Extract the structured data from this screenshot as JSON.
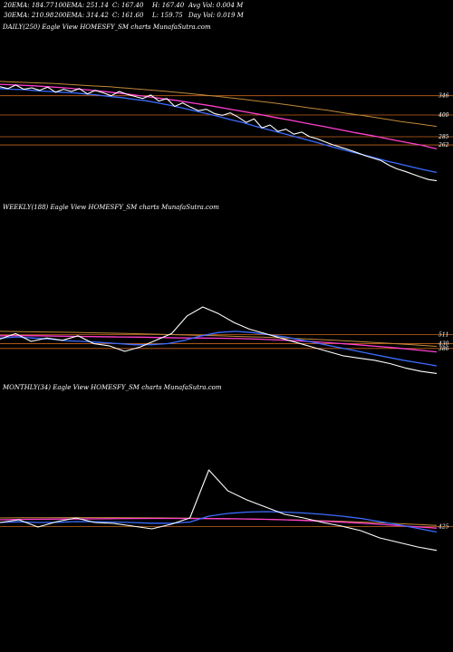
{
  "header": {
    "row1": [
      "20EMA: 184.77",
      "100EMA: 251.14",
      "C: 167.40",
      "H: 167.40",
      "Avg Vol: 0.004  M"
    ],
    "row2": [
      "30EMA: 210.98",
      "200EMA: 314.42",
      "C: 161.60",
      "L: 159.75",
      "Day Vol: 0.019 M"
    ]
  },
  "colors": {
    "price": "#ffffff",
    "ema_short": "#3b6cff",
    "ema_mid": "#ff3fd0",
    "ema_long": "#c08a3a",
    "level": "#c8641e"
  },
  "chart_data": [
    {
      "type": "line",
      "title": "DAILY(250) Eagle   View  HOMESFY_SM charts MunafaSutra.com",
      "price_labels": [
        "346",
        "400",
        "285",
        "262"
      ],
      "levels": [
        400,
        346,
        285,
        262
      ],
      "ylim": [
        120,
        450
      ],
      "series": [
        {
          "name": "price",
          "values": [
            425,
            420,
            430,
            418,
            422,
            415,
            424,
            410,
            418,
            412,
            420,
            405,
            415,
            408,
            400,
            412,
            404,
            398,
            392,
            402,
            385,
            392,
            370,
            380,
            368,
            358,
            362,
            350,
            345,
            352,
            340,
            325,
            335,
            310,
            318,
            300,
            306,
            292,
            298,
            285,
            279,
            270,
            262,
            255,
            248,
            240,
            232,
            225,
            218,
            205,
            195,
            188,
            180,
            172,
            165,
            161.6
          ]
        },
        {
          "name": "20EMA",
          "values": [
            420,
            418,
            417,
            414,
            412,
            410,
            408,
            405,
            402,
            398,
            395,
            390,
            386,
            380,
            373,
            366,
            358,
            350,
            342,
            333,
            325,
            315,
            306,
            297,
            288,
            279,
            270,
            260,
            251,
            242,
            234,
            225,
            216,
            208,
            200,
            192,
            185
          ]
        },
        {
          "name": "100EMA",
          "values": [
            432,
            430,
            428,
            425,
            422,
            418,
            414,
            409,
            404,
            398,
            392,
            386,
            379,
            372,
            364,
            356,
            348,
            339,
            331,
            322,
            314,
            305,
            296,
            288,
            279,
            270,
            262,
            251
          ]
        },
        {
          "name": "200EMA",
          "values": [
            440,
            438,
            436,
            434,
            431,
            428,
            425,
            421,
            417,
            413,
            408,
            403,
            398,
            392,
            386,
            380,
            373,
            366,
            359,
            351,
            344,
            336,
            328,
            321,
            314
          ]
        }
      ]
    },
    {
      "type": "line",
      "title": "WEEKLY(188) Eagle   View  HOMESFY_SM charts MunafaSutra.com",
      "price_labels": [
        "511",
        "430",
        "386"
      ],
      "levels": [
        511,
        430,
        386
      ],
      "ylim": [
        140,
        1200
      ],
      "series": [
        {
          "name": "price",
          "values": [
            470,
            520,
            450,
            480,
            460,
            500,
            430,
            410,
            360,
            400,
            460,
            520,
            680,
            760,
            700,
            620,
            560,
            520,
            480,
            440,
            400,
            360,
            320,
            300,
            280,
            250,
            210,
            180,
            161.6
          ]
        },
        {
          "name": "20EMA",
          "values": [
            480,
            490,
            480,
            470,
            455,
            450,
            440,
            430,
            420,
            420,
            430,
            460,
            500,
            530,
            540,
            530,
            510,
            490,
            460,
            430,
            400,
            370,
            340,
            310,
            280,
            255,
            230
          ]
        },
        {
          "name": "100EMA",
          "values": [
            500,
            502,
            500,
            497,
            495,
            492,
            490,
            488,
            485,
            482,
            480,
            478,
            475,
            470,
            463,
            455,
            445,
            433,
            420,
            405,
            390,
            372,
            355
          ]
        },
        {
          "name": "200EMA",
          "values": [
            540,
            538,
            535,
            532,
            528,
            524,
            520,
            515,
            510,
            505,
            500,
            494,
            488,
            480,
            472,
            463,
            453,
            442,
            430,
            418,
            405
          ]
        }
      ]
    },
    {
      "type": "line",
      "title": "MONTHLY(34) Eagle   View  HOMESFY_SM charts MunafaSutra.com",
      "price_labels": [
        "425"
      ],
      "levels": [
        425
      ],
      "ylim": [
        100,
        1400
      ],
      "series": [
        {
          "name": "price",
          "values": [
            470,
            500,
            420,
            480,
            520,
            470,
            460,
            430,
            400,
            450,
            520,
            1050,
            820,
            720,
            640,
            560,
            520,
            470,
            430,
            380,
            300,
            250,
            200,
            161.6
          ]
        },
        {
          "name": "20EMA",
          "values": [
            470,
            478,
            470,
            472,
            480,
            478,
            475,
            470,
            462,
            462,
            475,
            540,
            570,
            585,
            590,
            585,
            575,
            560,
            540,
            515,
            480,
            445,
            405,
            365
          ]
        },
        {
          "name": "100EMA",
          "values": [
            500,
            505,
            506,
            508,
            510,
            512,
            514,
            515,
            515,
            514,
            512,
            510,
            506,
            500,
            492,
            482,
            470,
            456,
            440,
            424,
            408
          ]
        },
        {
          "name": "200EMA",
          "values": [
            520,
            522,
            523,
            524,
            524,
            524,
            523,
            521,
            519,
            516,
            512,
            508,
            503,
            497,
            490,
            482,
            472,
            461,
            450,
            438
          ]
        }
      ]
    }
  ]
}
